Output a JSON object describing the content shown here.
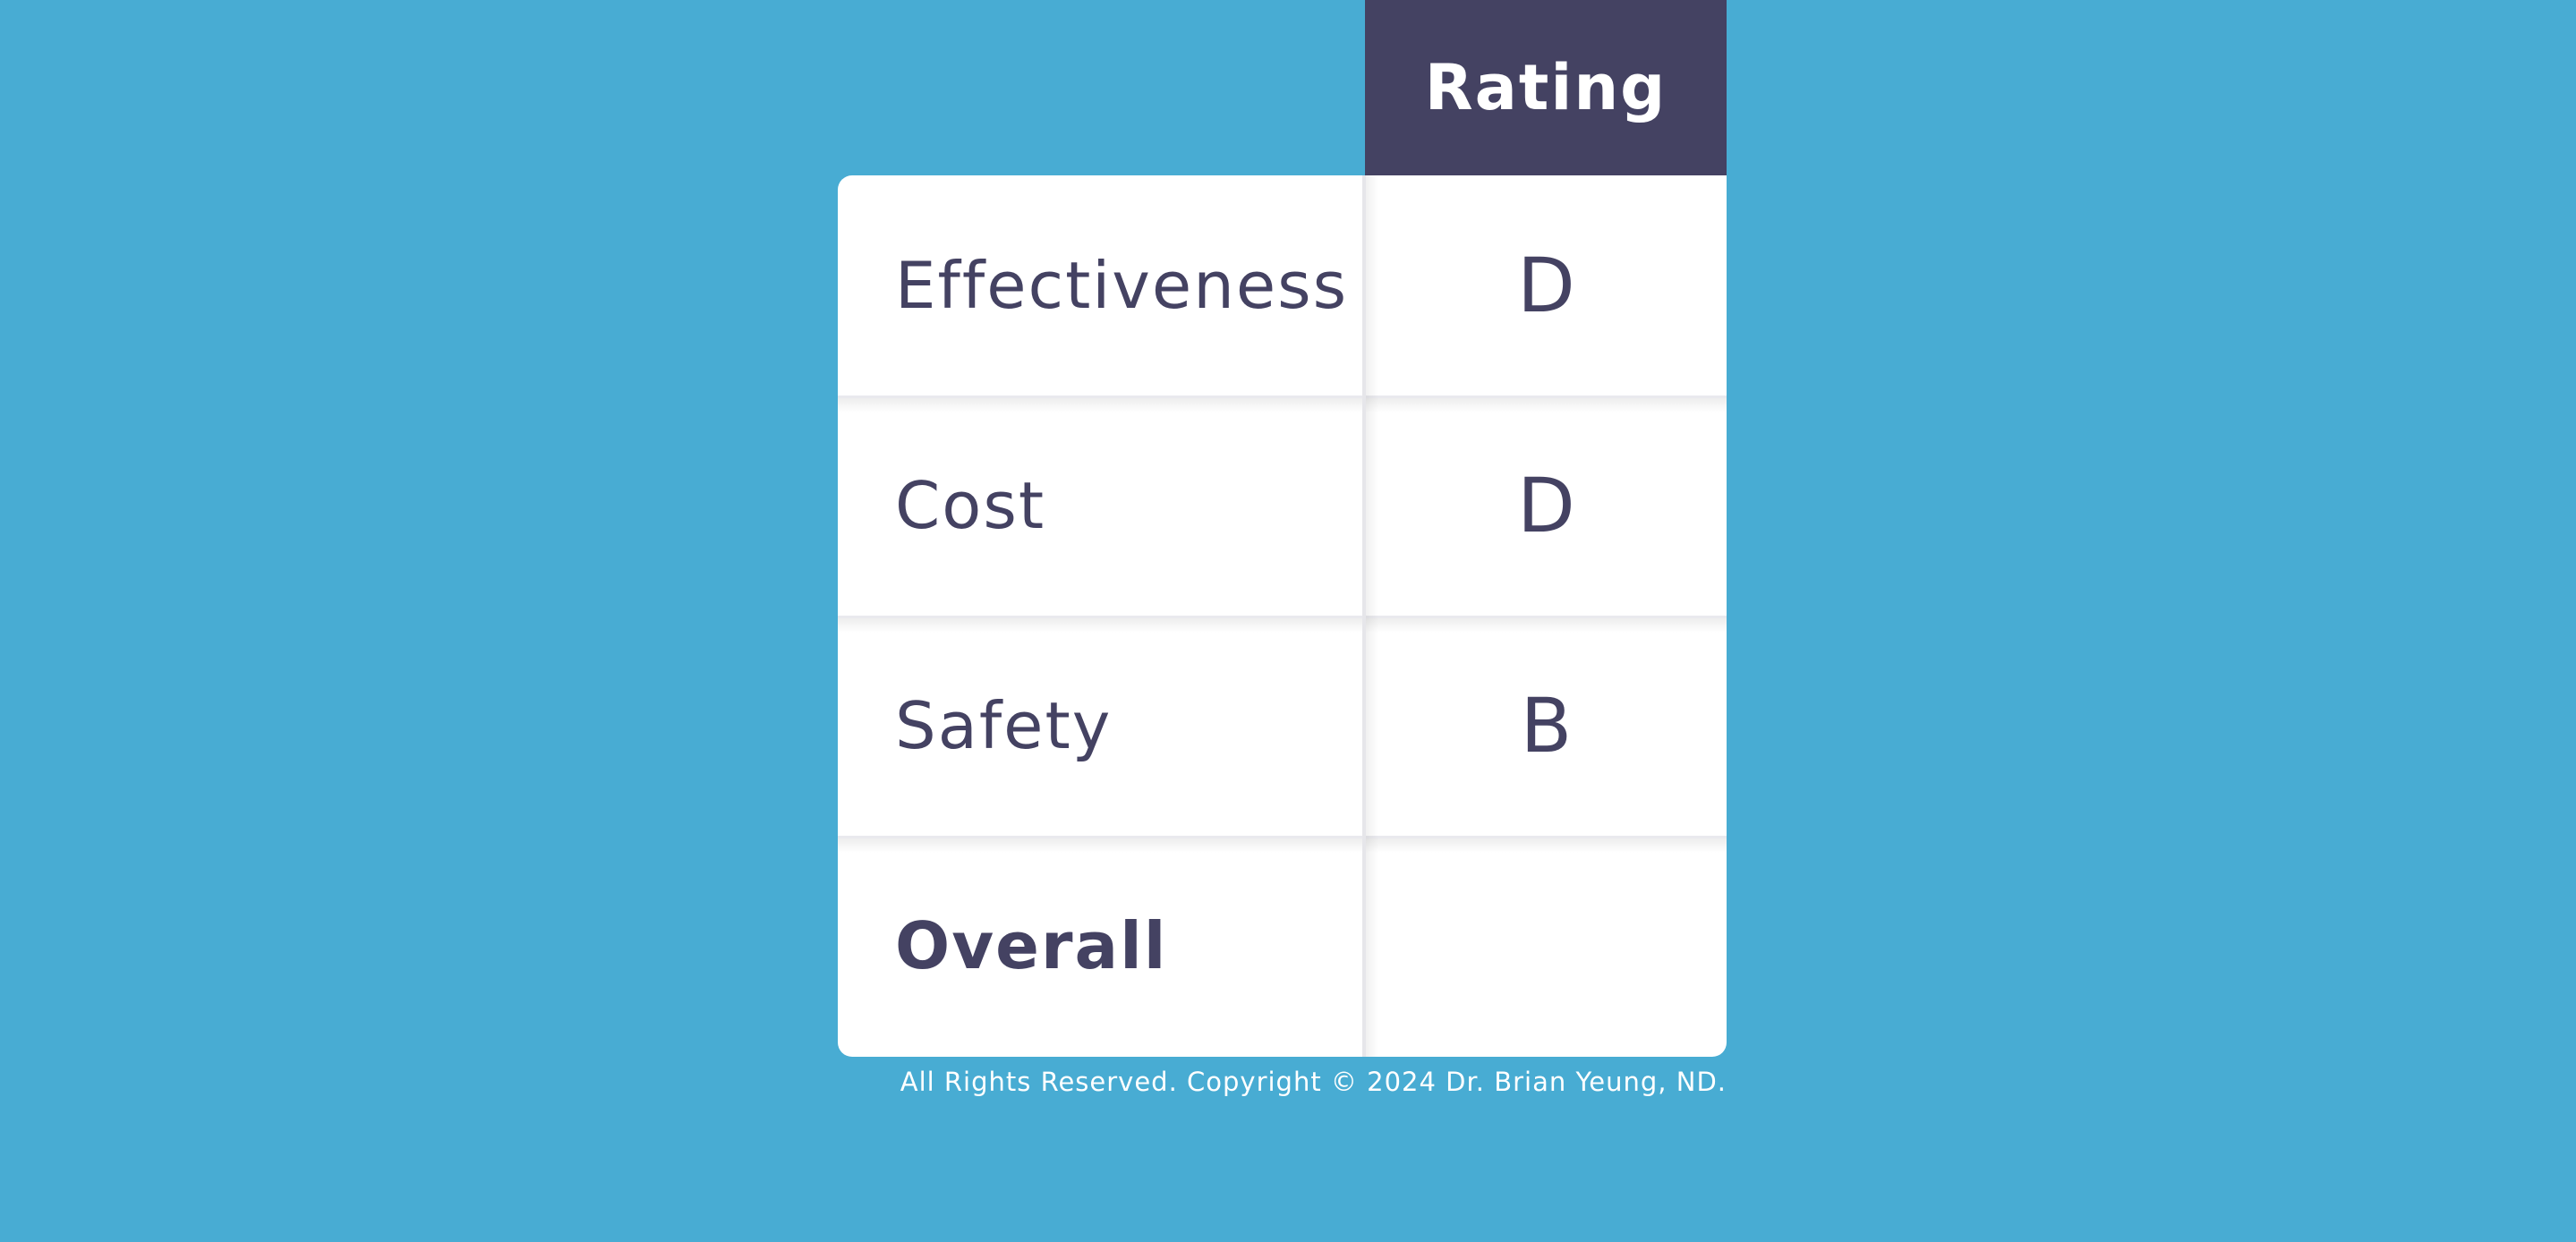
{
  "colors": {
    "background": "#48acd3",
    "header_bg": "#444262",
    "text_dark": "#444262",
    "card_bg": "#ffffff",
    "footer_text": "#ffffff"
  },
  "table": {
    "header": {
      "rating_label": "Rating"
    },
    "rows": [
      {
        "label": "Effectiveness",
        "rating": "D"
      },
      {
        "label": "Cost",
        "rating": "D"
      },
      {
        "label": "Safety",
        "rating": "B"
      },
      {
        "label": "Overall",
        "rating": ""
      }
    ]
  },
  "footer": {
    "copyright": "All Rights Reserved. Copyright © 2024 Dr. Brian Yeung, ND."
  }
}
